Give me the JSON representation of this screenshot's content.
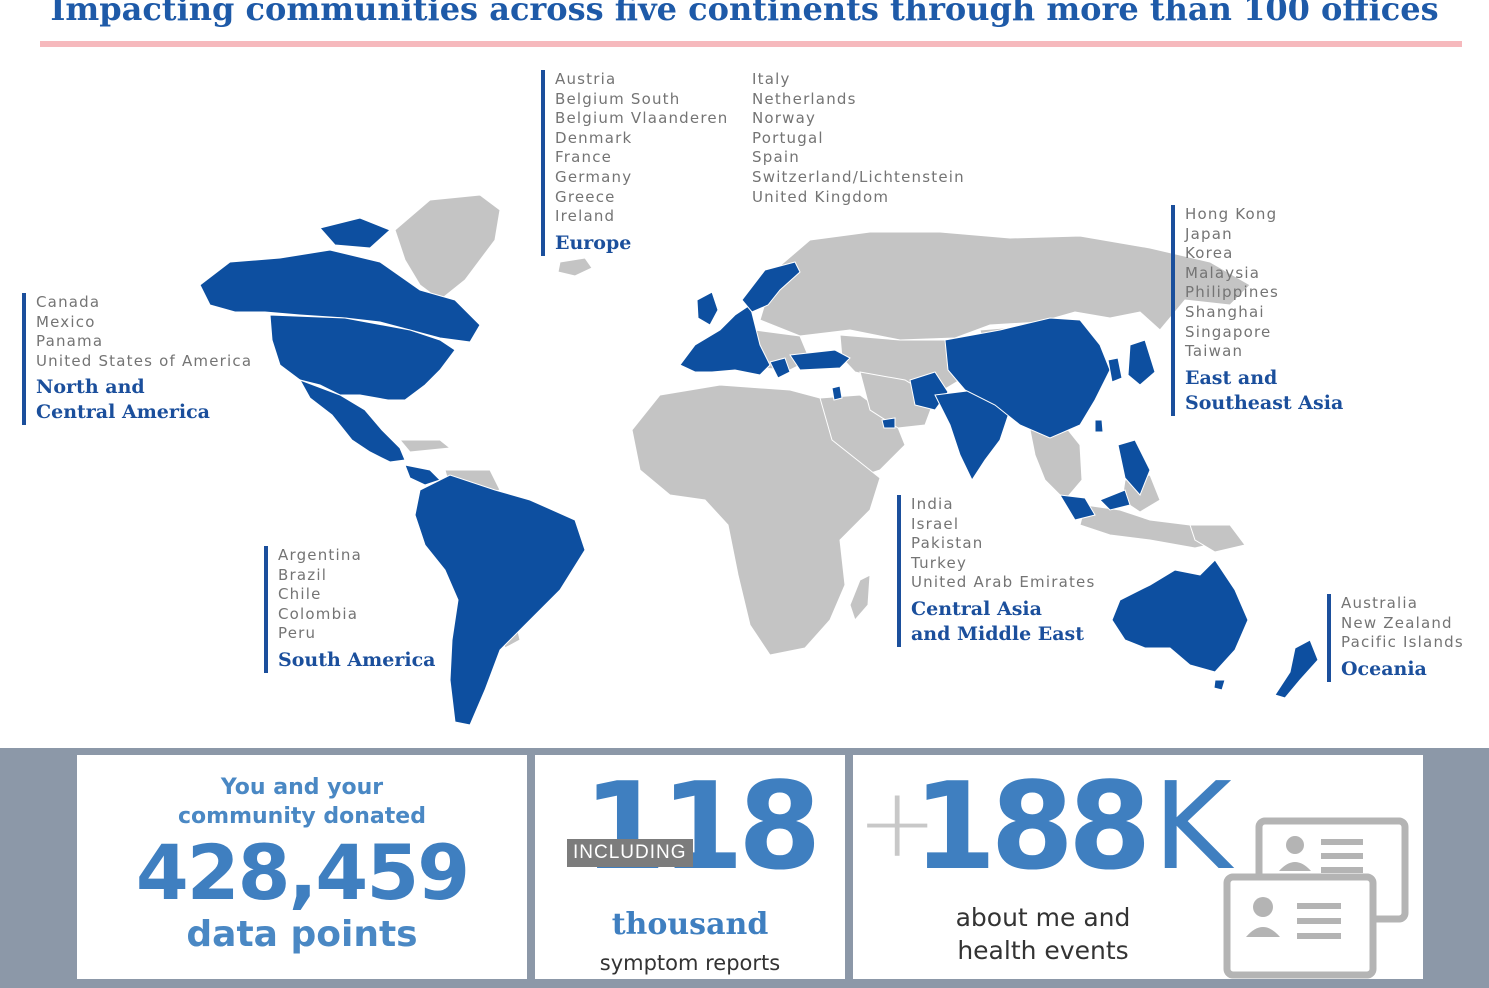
{
  "title": "Impacting communities across five continents through more than 100 offices",
  "colors": {
    "title": "#1e5aa8",
    "highlight": "#1b4f9c",
    "land": "#c4c4c4",
    "panel_bg": "#8c98a8",
    "stat_blue": "#3f7fc0",
    "rule": "#f6b9bd"
  },
  "regions": {
    "north_america": {
      "name_1": "North and",
      "name_2": "Central America",
      "countries": [
        "Canada",
        "Mexico",
        "Panama",
        "United States of America"
      ]
    },
    "europe": {
      "name": "Europe",
      "countries_col1": [
        "Austria",
        "Belgium South",
        "Belgium Vlaanderen",
        "Denmark",
        "France",
        "Germany",
        "Greece",
        "Ireland"
      ],
      "countries_col2": [
        "Italy",
        "Netherlands",
        "Norway",
        "Portugal",
        "Spain",
        "Switzerland/Lichtenstein",
        "United Kingdom"
      ]
    },
    "east_asia": {
      "name_1": "East and",
      "name_2": "Southeast Asia",
      "countries": [
        "Hong Kong",
        "Japan",
        "Korea",
        "Malaysia",
        "Philippines",
        "Shanghai",
        "Singapore",
        "Taiwan"
      ]
    },
    "south_america": {
      "name": "South America",
      "countries": [
        "Argentina",
        "Brazil",
        "Chile",
        "Colombia",
        "Peru"
      ]
    },
    "central_asia": {
      "name_1": "Central Asia",
      "name_2": "and Middle East",
      "countries": [
        "India",
        "Israel",
        "Pakistan",
        "Turkey",
        "United Arab Emirates"
      ]
    },
    "oceania": {
      "name": "Oceania",
      "countries": [
        "Australia",
        "New Zealand",
        "Pacific Islands"
      ]
    }
  },
  "stats": {
    "donated": {
      "line1": "You and your",
      "line2": "community donated",
      "number": "428,459",
      "line3": "data points"
    },
    "symptoms": {
      "badge": "INCLUDING",
      "number": "118",
      "unit": "thousand",
      "caption": "symptom reports"
    },
    "about_me": {
      "plus": "+",
      "number": "188",
      "suffix": "K",
      "caption1": "about me and",
      "caption2": "health events",
      "icon": "profile-card-icon"
    }
  }
}
